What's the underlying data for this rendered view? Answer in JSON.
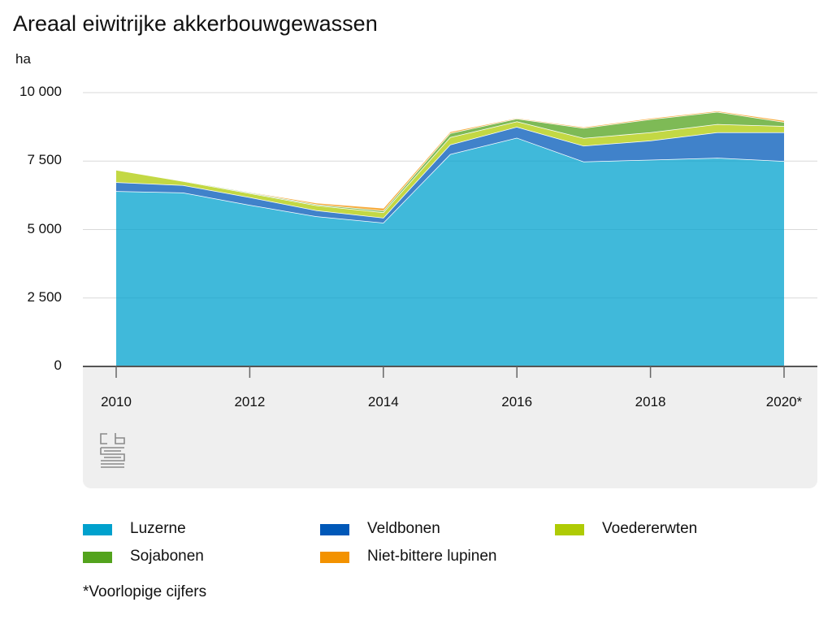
{
  "title": "Areaal eiwitrijke akkerbouwgewassen",
  "footnote": "*Voorlopige cijfers",
  "logo": "cbs-logo",
  "chart_data": {
    "type": "area",
    "stacked": true,
    "title": "Areaal eiwitrijke akkerbouwgewassen",
    "xlabel": "",
    "ylabel": "ha",
    "x": [
      "2010",
      "2011",
      "2012",
      "2013",
      "2014",
      "2015",
      "2016",
      "2017",
      "2018",
      "2019",
      "2020*"
    ],
    "xtick_labels": [
      "2010",
      "2012",
      "2014",
      "2016",
      "2018",
      "2020*"
    ],
    "yticks": [
      0,
      2500,
      5000,
      7500,
      10000
    ],
    "ytick_labels": [
      "0",
      "2 500",
      "5 000",
      "7 500",
      "10 000"
    ],
    "ylim": [
      0,
      10000
    ],
    "legend_position": "bottom",
    "series": [
      {
        "name": "Luzerne",
        "color": "#00a1cd",
        "values": [
          6400,
          6350,
          5900,
          5480,
          5250,
          7750,
          8350,
          7480,
          7550,
          7620,
          7500
        ]
      },
      {
        "name": "Veldbonen",
        "color": "#0058b8",
        "values": [
          330,
          270,
          280,
          220,
          180,
          350,
          400,
          580,
          700,
          930,
          1050
        ]
      },
      {
        "name": "Voedererwten",
        "color": "#afcb05",
        "values": [
          450,
          150,
          150,
          180,
          200,
          270,
          200,
          280,
          300,
          300,
          230
        ]
      },
      {
        "name": "Sojabonen",
        "color": "#53a31d",
        "values": [
          10,
          20,
          30,
          40,
          60,
          150,
          100,
          370,
          480,
          450,
          150
        ]
      },
      {
        "name": "Niet-bittere lupinen",
        "color": "#f39200",
        "values": [
          10,
          10,
          20,
          60,
          100,
          60,
          30,
          40,
          40,
          40,
          60
        ]
      }
    ],
    "legend": [
      "Luzerne",
      "Veldbonen",
      "Voedererwten",
      "Sojabonen",
      "Niet-bittere lupinen"
    ]
  }
}
